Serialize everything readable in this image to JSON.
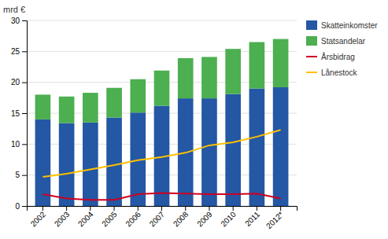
{
  "chart_data": {
    "type": "bar",
    "stacked": true,
    "ylabel": "mrd €",
    "categories": [
      "2002",
      "2003",
      "2004",
      "2005",
      "2006",
      "2007",
      "2008",
      "2009",
      "2010",
      "2011",
      "2012*"
    ],
    "series": [
      {
        "name": "Skatteinkomster",
        "type": "bar",
        "color": "#2457A4",
        "values": [
          14.0,
          13.4,
          13.5,
          14.3,
          15.1,
          16.2,
          17.4,
          17.4,
          18.1,
          19.0,
          19.2
        ]
      },
      {
        "name": "Statsandelar",
        "type": "bar",
        "color": "#4CAF50",
        "values": [
          4.0,
          4.3,
          4.8,
          4.8,
          5.4,
          5.7,
          6.5,
          6.7,
          7.3,
          7.5,
          7.8
        ]
      },
      {
        "name": "Årsbidrag",
        "type": "line",
        "color": "#CC0022",
        "values": [
          1.9,
          1.2,
          1.0,
          1.0,
          1.9,
          2.1,
          2.0,
          1.9,
          1.9,
          2.0,
          1.2
        ]
      },
      {
        "name": "Lånestock",
        "type": "line",
        "color": "#FFC000",
        "values": [
          4.7,
          5.2,
          5.9,
          6.6,
          7.4,
          7.9,
          8.6,
          9.8,
          10.3,
          11.2,
          12.3
        ]
      }
    ],
    "ylim": [
      0,
      30
    ],
    "yticks": [
      0,
      5,
      10,
      15,
      20,
      25,
      30
    ],
    "grid": true,
    "legend": "upper right"
  }
}
